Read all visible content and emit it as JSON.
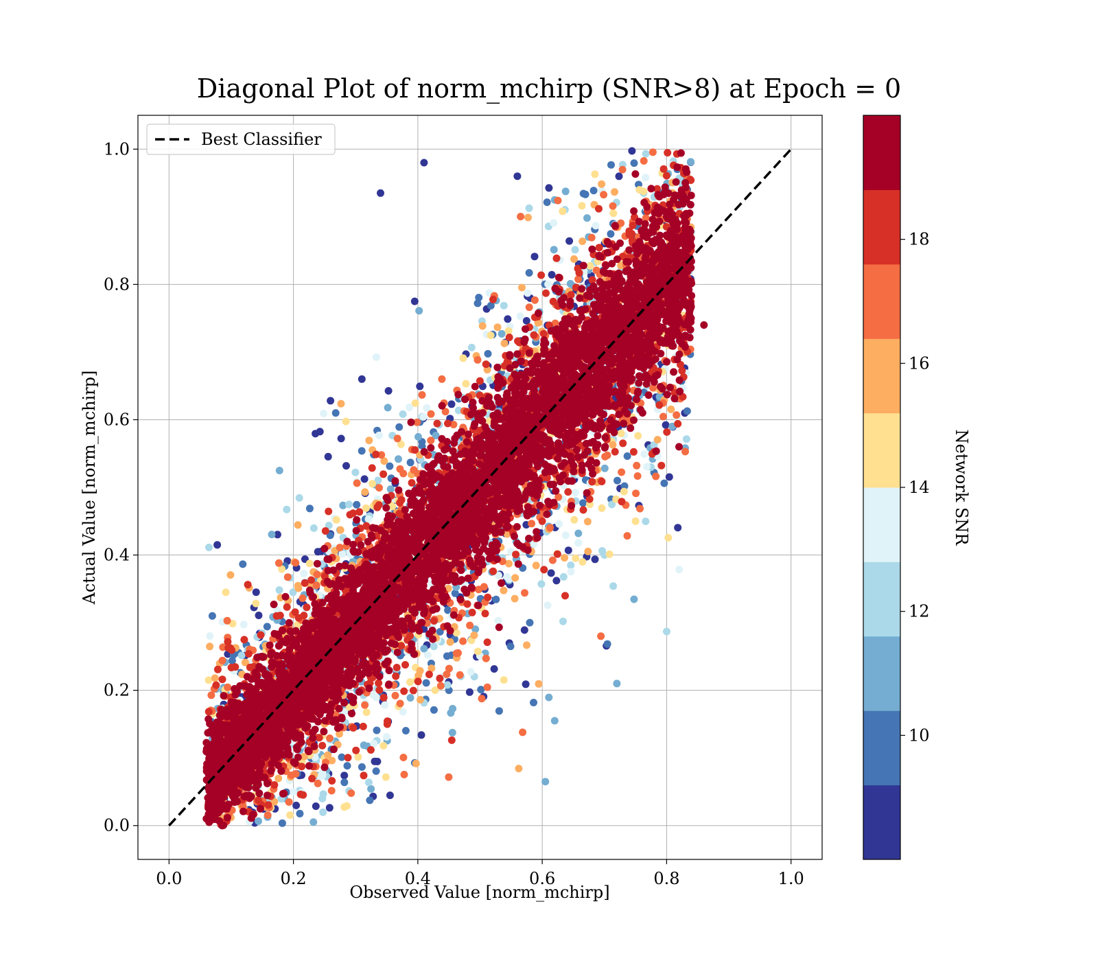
{
  "chart_data": {
    "type": "scatter",
    "title": "Diagonal Plot of norm_mchirp (SNR>8) at Epoch = 0",
    "xlabel": "Observed Value [norm_mchirp]",
    "ylabel": "Actual Value [norm_mchirp]",
    "xlim": [
      -0.05,
      1.05
    ],
    "ylim": [
      -0.05,
      1.05
    ],
    "xticks": [
      0.0,
      0.2,
      0.4,
      0.6,
      0.8,
      1.0
    ],
    "yticks": [
      0.0,
      0.2,
      0.4,
      0.6,
      0.8,
      1.0
    ],
    "xtick_labels": [
      "0.0",
      "0.2",
      "0.4",
      "0.6",
      "0.8",
      "1.0"
    ],
    "ytick_labels": [
      "0.0",
      "0.2",
      "0.4",
      "0.6",
      "0.8",
      "1.0"
    ],
    "grid": true,
    "legend": {
      "position": "upper-left",
      "entries": [
        {
          "label": "Best Classifier",
          "style": "dashed-black-line"
        }
      ]
    },
    "reference_line": {
      "name": "Best Classifier",
      "x": [
        0.0,
        1.0
      ],
      "y": [
        0.0,
        1.0
      ],
      "color": "#000000",
      "dash": "dashed"
    },
    "scatter_summary": {
      "description": "Dense cloud of points along the diagonal; high SNR (dark red) concentrated near the diagonal, lower SNR (blue) spread further away",
      "x_range": [
        0.05,
        0.86
      ],
      "y_range": [
        0.0,
        1.0
      ],
      "samples": [
        [
          0.34,
          0.935,
          8.5
        ],
        [
          0.41,
          0.98,
          8.5
        ],
        [
          0.62,
          0.155,
          11
        ],
        [
          0.605,
          0.065,
          11
        ],
        [
          0.86,
          0.74,
          19
        ],
        [
          0.82,
          0.56,
          19
        ],
        [
          0.56,
          0.96,
          8.5
        ],
        [
          0.72,
          0.21,
          11
        ],
        [
          0.14,
          0.345,
          8.5
        ],
        [
          0.31,
          0.66,
          8.5
        ],
        [
          0.395,
          0.775,
          8.5
        ],
        [
          0.58,
          0.3,
          9.5
        ],
        [
          0.7,
          0.4,
          12
        ],
        [
          0.45,
          0.2,
          10
        ],
        [
          0.2,
          0.05,
          13
        ],
        [
          0.1,
          0.1,
          19
        ],
        [
          0.3,
          0.3,
          19
        ],
        [
          0.5,
          0.5,
          19
        ],
        [
          0.7,
          0.7,
          19
        ],
        [
          0.8,
          0.9,
          19
        ],
        [
          0.6,
          0.45,
          18
        ],
        [
          0.4,
          0.52,
          17
        ],
        [
          0.75,
          0.45,
          15
        ],
        [
          0.25,
          0.1,
          14
        ]
      ]
    },
    "colorbar": {
      "label": "Network SNR",
      "range": [
        8,
        20
      ],
      "tick_values": [
        10,
        12,
        14,
        16,
        18
      ],
      "tick_labels": [
        "10",
        "12",
        "14",
        "16",
        "18"
      ],
      "bins": [
        {
          "from": 8,
          "to": 9.2,
          "color": "#313695"
        },
        {
          "from": 9.2,
          "to": 10.4,
          "color": "#4575b4"
        },
        {
          "from": 10.4,
          "to": 11.6,
          "color": "#74add1"
        },
        {
          "from": 11.6,
          "to": 12.8,
          "color": "#abd9e9"
        },
        {
          "from": 12.8,
          "to": 14.0,
          "color": "#e0f3f8"
        },
        {
          "from": 14.0,
          "to": 15.2,
          "color": "#fee090"
        },
        {
          "from": 15.2,
          "to": 16.4,
          "color": "#fdae61"
        },
        {
          "from": 16.4,
          "to": 17.6,
          "color": "#f46d43"
        },
        {
          "from": 17.6,
          "to": 18.8,
          "color": "#d73027"
        },
        {
          "from": 18.8,
          "to": 20.0,
          "color": "#a50026"
        }
      ]
    }
  }
}
